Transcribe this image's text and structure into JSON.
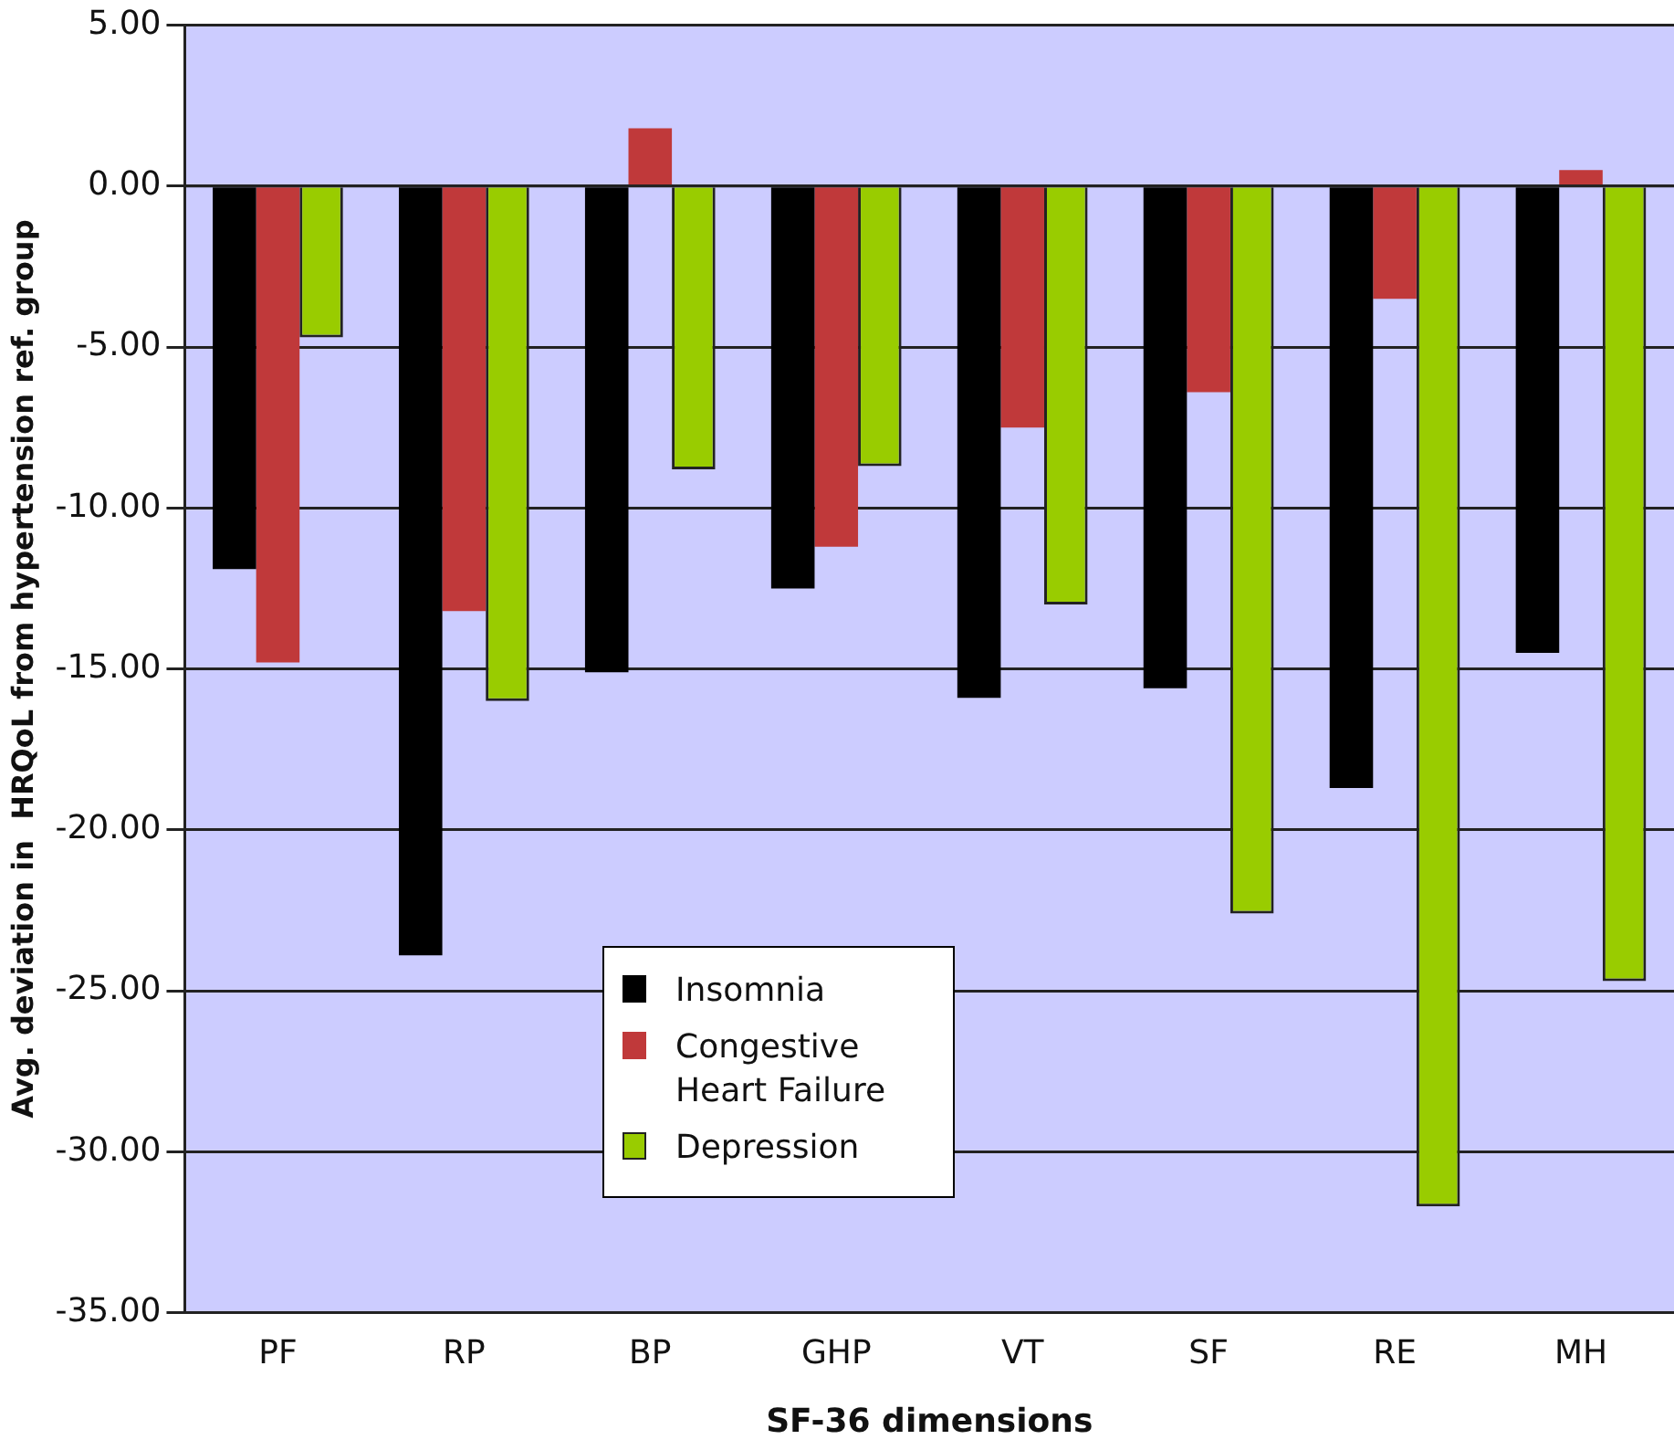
{
  "chart_data": {
    "type": "bar",
    "xlabel": "SF-36 dimensions",
    "ylabel": "Avg. deviation in  HRQoL from hypertension ref. group",
    "categories": [
      "PF",
      "RP",
      "BP",
      "GHP",
      "VT",
      "SF",
      "RE",
      "MH"
    ],
    "series": [
      {
        "name": "Insomnia",
        "color": "#000000",
        "values": [
          -11.9,
          -23.9,
          -15.1,
          -12.5,
          -15.9,
          -15.6,
          -18.7,
          -14.5
        ]
      },
      {
        "name": "Congestive Heart Failure",
        "color": "#c0393a",
        "values": [
          -14.8,
          -13.2,
          1.8,
          -11.2,
          -7.5,
          -6.4,
          -3.5,
          0.5
        ]
      },
      {
        "name": "Depression",
        "color": "#99cc00",
        "values": [
          -4.7,
          -16.0,
          -8.8,
          -8.7,
          -13.0,
          -22.6,
          -31.7,
          -24.7
        ]
      }
    ],
    "ylim": [
      -35,
      5
    ],
    "yticks": [
      {
        "value": -35,
        "label": "-35.00"
      },
      {
        "value": -30,
        "label": "-30.00"
      },
      {
        "value": -25,
        "label": "-25.00"
      },
      {
        "value": -20,
        "label": "-20.00"
      },
      {
        "value": -15,
        "label": "-15.00"
      },
      {
        "value": -10,
        "label": "-10.00"
      },
      {
        "value": -5,
        "label": "-5.00"
      },
      {
        "value": 0,
        "label": "0.00"
      },
      {
        "value": 5,
        "label": "5.00"
      }
    ],
    "grid": "y",
    "legend": "bottom"
  }
}
